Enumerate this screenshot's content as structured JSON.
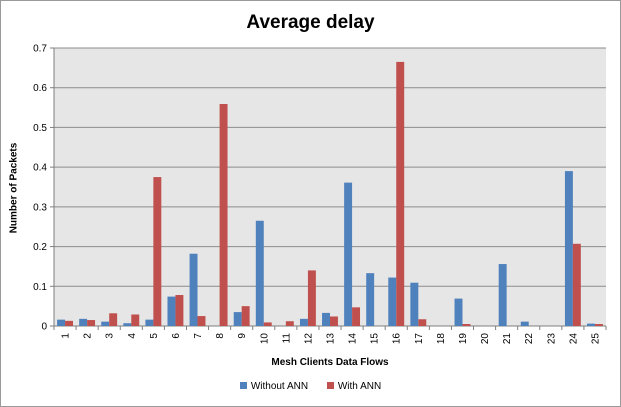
{
  "chart_data": {
    "type": "bar",
    "title": "Average delay",
    "xlabel": "Mesh Clients Data Flows",
    "ylabel": "Number of Packets",
    "ylim": [
      0,
      0.7
    ],
    "yticks": [
      "0",
      "0.1",
      "0.2",
      "0.3",
      "0.4",
      "0.5",
      "0.6",
      "0.7"
    ],
    "ytick_values": [
      0,
      0.1,
      0.2,
      0.3,
      0.4,
      0.5,
      0.6,
      0.7
    ],
    "categories": [
      "1",
      "2",
      "3",
      "4",
      "5",
      "6",
      "7",
      "8",
      "9",
      "10",
      "11",
      "12",
      "13",
      "14",
      "15",
      "16",
      "17",
      "18",
      "19",
      "20",
      "21",
      "22",
      "23",
      "24",
      "25"
    ],
    "grid": true,
    "legend_position": "bottom",
    "series": [
      {
        "name": "Without ANN",
        "color": "#4f81bd",
        "values": [
          0.016,
          0.018,
          0.011,
          0.007,
          0.016,
          0.074,
          0.182,
          0,
          0.035,
          0.265,
          0,
          0.018,
          0.033,
          0.361,
          0.133,
          0.122,
          0.109,
          0,
          0.069,
          0,
          0.156,
          0.011,
          0,
          0.39,
          0.006
        ]
      },
      {
        "name": "With ANN",
        "color": "#c0504d",
        "values": [
          0.013,
          0.015,
          0.032,
          0.029,
          0.375,
          0.078,
          0.025,
          0.559,
          0.05,
          0.009,
          0.012,
          0.14,
          0.024,
          0.047,
          0,
          0.665,
          0.017,
          0,
          0.005,
          0,
          0,
          0,
          0,
          0.207,
          0.005
        ]
      }
    ]
  },
  "colors": {
    "plot_background": "#e6e6e6",
    "gridline": "#8c8c8c"
  }
}
